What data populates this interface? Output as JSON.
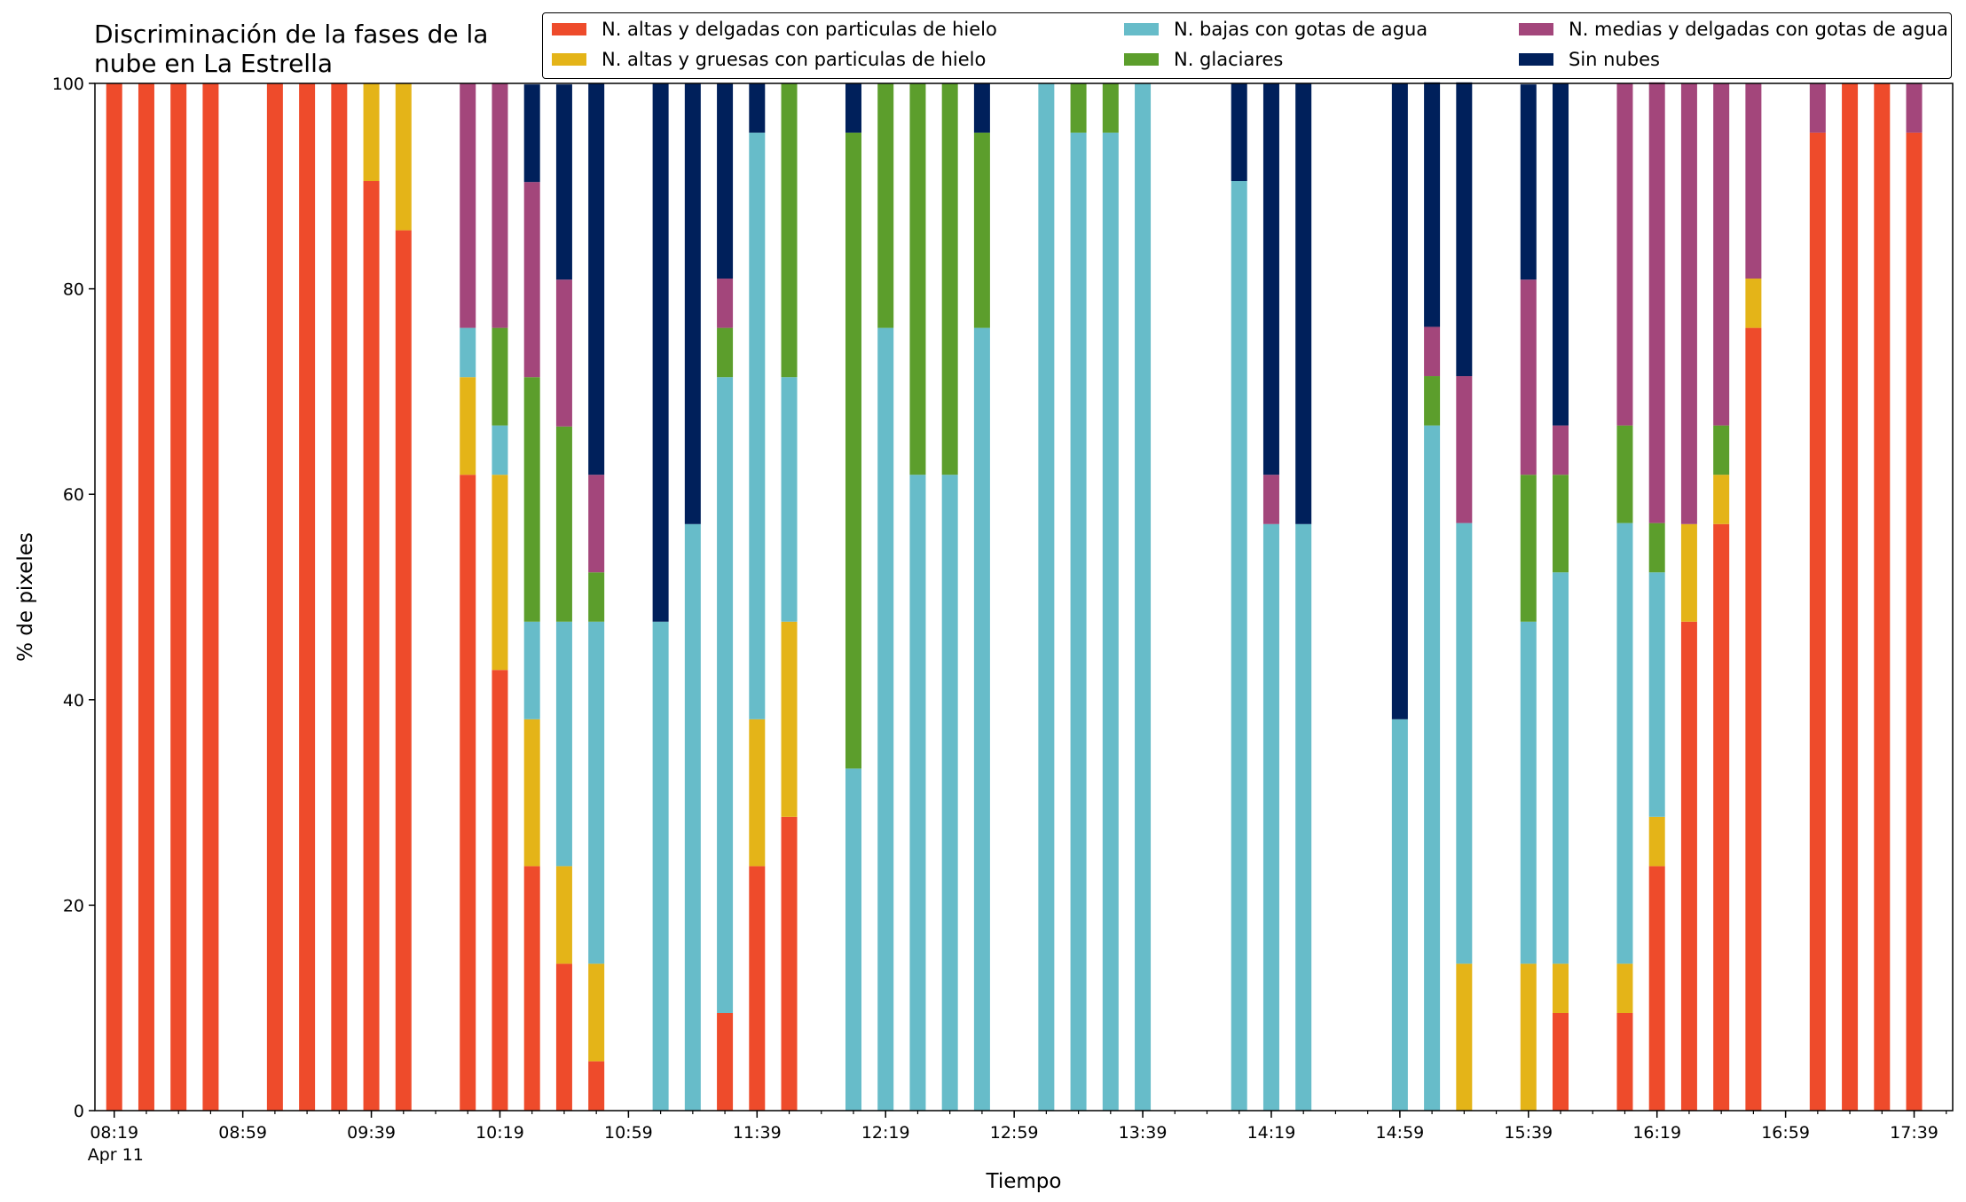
{
  "chart_data": {
    "type": "bar",
    "stacked": true,
    "title": [
      "Discriminación de la fases de la",
      "nube en La Estrella"
    ],
    "xlabel": "Tiempo",
    "ylabel": "% de pixeles",
    "ylim": [
      0,
      100
    ],
    "yticks": [
      0,
      20,
      40,
      60,
      80,
      100
    ],
    "x_date_label": "Apr 11",
    "xlim_minutes": [
      "08:13",
      "17:51"
    ],
    "x_tick_labels": [
      "08:19",
      "08:59",
      "09:39",
      "10:19",
      "10:59",
      "11:39",
      "12:19",
      "12:59",
      "13:39",
      "14:19",
      "14:59",
      "15:39",
      "16:19",
      "16:59",
      "17:39"
    ],
    "x_tick_times": [
      "08:19",
      "08:59",
      "09:39",
      "10:19",
      "10:59",
      "11:39",
      "12:19",
      "12:59",
      "13:39",
      "14:19",
      "14:59",
      "15:39",
      "16:19",
      "16:59",
      "17:39"
    ],
    "x_minor_step_minutes": 10,
    "legend_position": "top",
    "series": [
      {
        "name": "N. altas y delgadas con particulas de hielo",
        "color": "#ee4b2b"
      },
      {
        "name": "N. altas y gruesas con particulas de hielo",
        "color": "#e4b418"
      },
      {
        "name": "N. bajas con gotas de agua",
        "color": "#67bcc9"
      },
      {
        "name": "N. glaciares",
        "color": "#5c9e2c"
      },
      {
        "name": "N. medias y delgadas con gotas de agua",
        "color": "#a3467b"
      },
      {
        "name": "Sin nubes",
        "color": "#00205b"
      }
    ],
    "bars": [
      {
        "time": "08:19",
        "values": [
          100,
          0,
          0,
          0,
          0,
          0
        ]
      },
      {
        "time": "08:29",
        "values": [
          100,
          0,
          0,
          0,
          0,
          0
        ]
      },
      {
        "time": "08:39",
        "values": [
          100,
          0,
          0,
          0,
          0,
          0
        ]
      },
      {
        "time": "08:49",
        "values": [
          100,
          0,
          0,
          0,
          0,
          0
        ]
      },
      {
        "time": "09:09",
        "values": [
          100,
          0,
          0,
          0,
          0,
          0
        ]
      },
      {
        "time": "09:19",
        "values": [
          100,
          0,
          0,
          0,
          0,
          0
        ]
      },
      {
        "time": "09:29",
        "values": [
          100,
          0,
          0,
          0,
          0,
          0
        ]
      },
      {
        "time": "09:39",
        "values": [
          90.5,
          9.5,
          0,
          0,
          0,
          0
        ]
      },
      {
        "time": "09:49",
        "values": [
          85.7,
          14.3,
          0,
          0,
          0,
          0
        ]
      },
      {
        "time": "10:09",
        "values": [
          61.9,
          9.5,
          4.8,
          0,
          23.8,
          0
        ]
      },
      {
        "time": "10:19",
        "values": [
          42.9,
          19.0,
          4.8,
          9.5,
          23.8,
          0
        ]
      },
      {
        "time": "10:29",
        "values": [
          23.8,
          14.3,
          9.5,
          23.8,
          19.0,
          9.5
        ]
      },
      {
        "time": "10:39",
        "values": [
          14.3,
          9.5,
          23.8,
          19.0,
          14.3,
          19.0
        ]
      },
      {
        "time": "10:49",
        "values": [
          4.8,
          9.5,
          33.3,
          4.8,
          9.5,
          38.1
        ]
      },
      {
        "time": "11:09",
        "values": [
          0,
          0,
          47.6,
          0,
          0,
          52.4
        ]
      },
      {
        "time": "11:19",
        "values": [
          0,
          0,
          57.1,
          0,
          0,
          42.9
        ]
      },
      {
        "time": "11:29",
        "values": [
          9.5,
          0,
          61.9,
          4.8,
          4.8,
          19.0
        ]
      },
      {
        "time": "11:39",
        "values": [
          23.8,
          14.3,
          57.1,
          0,
          0,
          4.8
        ]
      },
      {
        "time": "11:49",
        "values": [
          28.6,
          19.0,
          23.8,
          28.6,
          0,
          0
        ]
      },
      {
        "time": "12:09",
        "values": [
          0,
          0,
          33.3,
          61.9,
          0,
          4.8
        ]
      },
      {
        "time": "12:19",
        "values": [
          0,
          0,
          76.2,
          23.8,
          0,
          0
        ]
      },
      {
        "time": "12:29",
        "values": [
          0,
          0,
          61.9,
          38.1,
          0,
          0
        ]
      },
      {
        "time": "12:39",
        "values": [
          0,
          0,
          61.9,
          38.1,
          0,
          0
        ]
      },
      {
        "time": "12:49",
        "values": [
          0,
          0,
          76.2,
          19.0,
          0,
          4.8
        ]
      },
      {
        "time": "13:09",
        "values": [
          0,
          0,
          100,
          0,
          0,
          0
        ]
      },
      {
        "time": "13:19",
        "values": [
          0,
          0,
          95.2,
          4.8,
          0,
          0
        ]
      },
      {
        "time": "13:29",
        "values": [
          0,
          0,
          95.2,
          4.8,
          0,
          0
        ]
      },
      {
        "time": "13:39",
        "values": [
          0,
          0,
          100,
          0,
          0,
          0
        ]
      },
      {
        "time": "14:09",
        "values": [
          0,
          0,
          90.5,
          0,
          0,
          9.5
        ]
      },
      {
        "time": "14:19",
        "values": [
          0,
          0,
          57.1,
          0,
          4.8,
          38.1
        ]
      },
      {
        "time": "14:29",
        "values": [
          0,
          0,
          57.1,
          0,
          0,
          42.9
        ]
      },
      {
        "time": "14:59",
        "values": [
          0,
          0,
          38.1,
          0,
          0,
          61.9
        ]
      },
      {
        "time": "15:09",
        "values": [
          0,
          0,
          66.7,
          4.8,
          4.8,
          23.8
        ]
      },
      {
        "time": "15:19",
        "values": [
          0,
          14.3,
          42.9,
          0,
          14.3,
          28.6
        ]
      },
      {
        "time": "15:39",
        "values": [
          0,
          14.3,
          33.3,
          14.3,
          19.0,
          19.0
        ]
      },
      {
        "time": "15:49",
        "values": [
          9.5,
          4.8,
          38.1,
          9.5,
          4.8,
          33.3
        ]
      },
      {
        "time": "16:09",
        "values": [
          9.5,
          4.8,
          42.9,
          9.5,
          33.3,
          0
        ]
      },
      {
        "time": "16:19",
        "values": [
          23.8,
          4.8,
          23.8,
          4.8,
          42.9,
          0
        ]
      },
      {
        "time": "16:29",
        "values": [
          47.6,
          9.5,
          0,
          0,
          42.9,
          0
        ]
      },
      {
        "time": "16:39",
        "values": [
          57.1,
          4.8,
          0,
          4.8,
          33.3,
          0
        ]
      },
      {
        "time": "16:49",
        "values": [
          76.2,
          4.8,
          0,
          0,
          19.0,
          0
        ]
      },
      {
        "time": "17:09",
        "values": [
          95.2,
          0,
          0,
          0,
          4.8,
          0
        ]
      },
      {
        "time": "17:19",
        "values": [
          100,
          0,
          0,
          0,
          0,
          0
        ]
      },
      {
        "time": "17:29",
        "values": [
          100,
          0,
          0,
          0,
          0,
          0
        ]
      },
      {
        "time": "17:39",
        "values": [
          95.2,
          0,
          0,
          0,
          4.8,
          0
        ]
      }
    ]
  }
}
